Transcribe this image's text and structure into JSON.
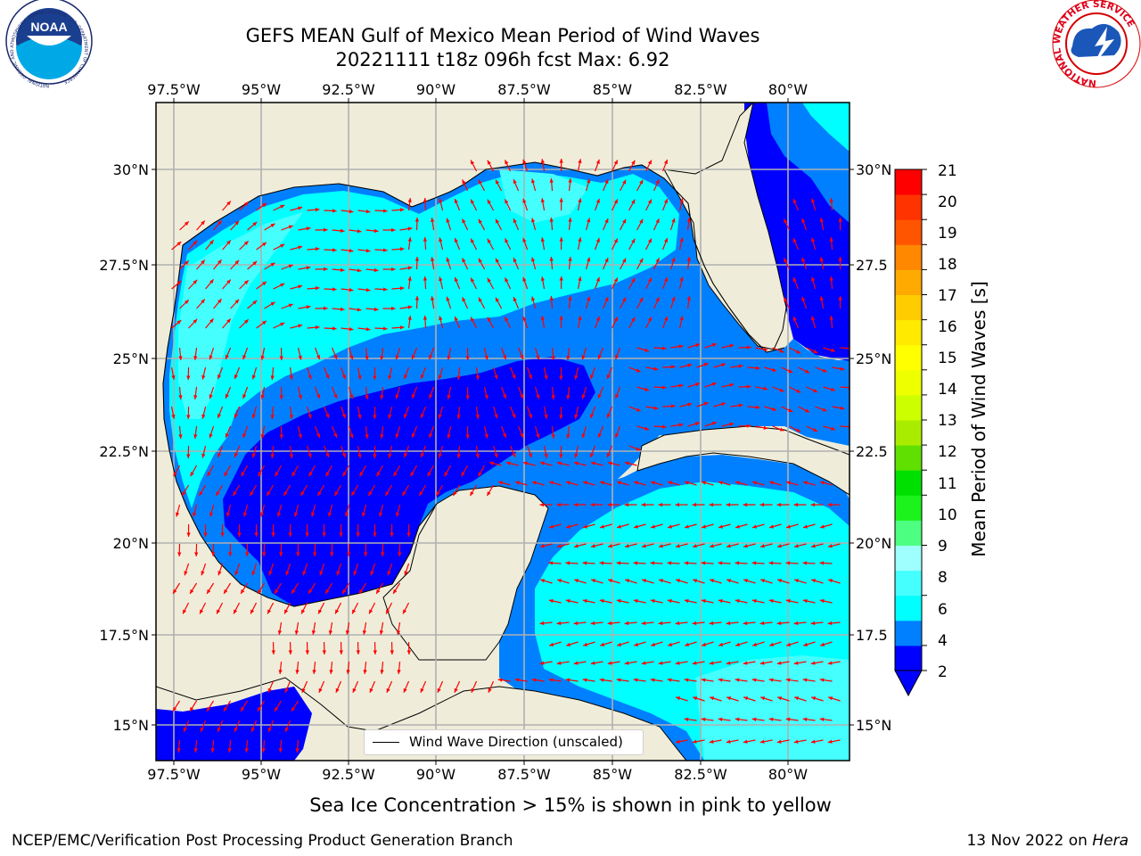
{
  "title": {
    "line1": "GEFS MEAN Gulf of Mexico Mean Period of Wind Waves",
    "line2": "20221111 t18z 096h fcst   Max: 6.92"
  },
  "map": {
    "lon_labels": [
      "97.5°W",
      "95°W",
      "92.5°W",
      "90°W",
      "87.5°W",
      "85°W",
      "82.5°W",
      "80°W"
    ],
    "lat_labels_left": [
      "30°N",
      "27.5°N",
      "25°N",
      "22.5°N",
      "20°N",
      "17.5°N",
      "15°N"
    ],
    "lat_labels_right": [
      "30°N",
      "27.5",
      "25°N",
      "22.5",
      "20°N",
      "17.5",
      "15°N"
    ],
    "lon_range": [
      -98,
      -78.2
    ],
    "lat_range": [
      14,
      31.7
    ],
    "land_color": "#efedda",
    "arrow_color": "#ff0000",
    "legend_text": "Wind Wave Direction (unscaled)"
  },
  "colorbar": {
    "label": "Mean Period of Wind Waves [s]",
    "ticks": [
      "21",
      "20",
      "19",
      "18",
      "17",
      "16",
      "15",
      "14",
      "13",
      "12",
      "11",
      "10",
      "9",
      "8",
      "6",
      "4",
      "2"
    ],
    "colors": [
      "#0000ff",
      "#0080ff",
      "#00ffff",
      "#45ffff",
      "#9fffff",
      "#4dff80",
      "#1cf31c",
      "#00e000",
      "#5fe000",
      "#aaec00",
      "#ccff00",
      "#eeff00",
      "#ffff00",
      "#ffea00",
      "#ffcc00",
      "#ffaa00",
      "#ff8800",
      "#ff5500",
      "#ff3300",
      "#ff0000"
    ]
  },
  "footer": {
    "sea_ice_note": "Sea Ice Concentration > 15% is shown in pink to yellow",
    "credit": "NCEP/EMC/Verification Post Processing Product Generation Branch",
    "date": "13 Nov 2022 on ",
    "host": "Hera"
  },
  "logos": {
    "noaa_text": "NOAA",
    "noaa_ring": "NATIONAL OCEANIC AND ATMOSPHERIC ADMINISTRATION · U.S. DEPARTMENT OF COMMERCE",
    "nws_ring": "NATIONAL WEATHER SERVICE"
  }
}
